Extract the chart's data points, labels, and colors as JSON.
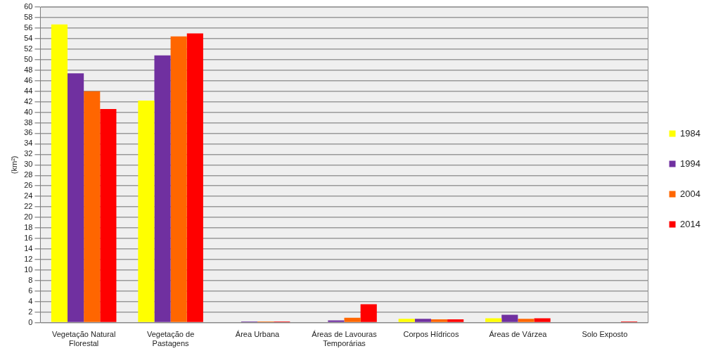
{
  "chart_data": {
    "type": "bar",
    "ylabel": "(km²)",
    "categories": [
      "Vegetação Natural\nFlorestal",
      "Vegetação de\nPastagens",
      "Área Urbana",
      "Áreas de Lavouras\nTemporárias",
      "Corpos Hídricos",
      "Áreas de Várzea",
      "Solo Exposto"
    ],
    "series": [
      {
        "name": "1984",
        "color": "#ffff00",
        "values": [
          56.7,
          42.2,
          0.1,
          0.1,
          0.7,
          0.8,
          0
        ]
      },
      {
        "name": "1994",
        "color": "#7030a0",
        "values": [
          47.4,
          50.8,
          0.2,
          0.4,
          0.7,
          1.5,
          0
        ]
      },
      {
        "name": "2004",
        "color": "#ff6600",
        "values": [
          44,
          54.4,
          0.2,
          0.9,
          0.6,
          0.7,
          0
        ]
      },
      {
        "name": "2014",
        "color": "#ff0000",
        "values": [
          40.6,
          55,
          0.2,
          3.5,
          0.6,
          0.8,
          0.2
        ]
      }
    ],
    "ylim": [
      0,
      60
    ],
    "yticks": [
      0,
      2,
      4,
      6,
      8,
      10,
      12,
      14,
      16,
      18,
      20,
      22,
      24,
      26,
      28,
      30,
      32,
      34,
      36,
      38,
      40,
      42,
      44,
      46,
      48,
      50,
      52,
      54,
      56,
      58,
      60
    ],
    "grid": "y",
    "legend": "right"
  }
}
